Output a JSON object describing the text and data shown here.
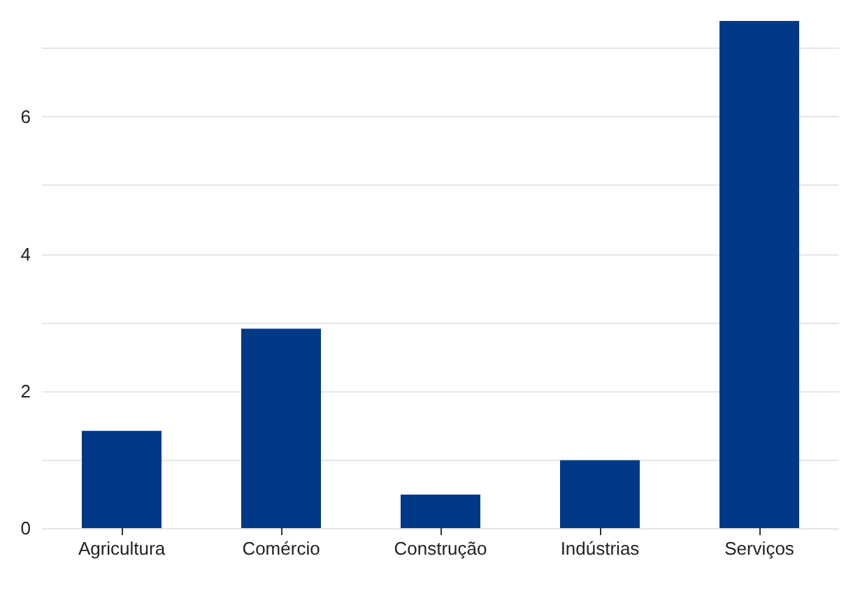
{
  "chart_data": {
    "type": "bar",
    "categories": [
      "Agricultura",
      "Comércio",
      "Construção",
      "Indústrias",
      "Serviços"
    ],
    "values": [
      1.42,
      2.91,
      0.49,
      0.99,
      7.4
    ],
    "color": "#003a87",
    "ylim": [
      0,
      7.4
    ],
    "yticks": [
      0,
      {
        "value": 1,
        "label": null
      },
      2,
      {
        "value": 3,
        "label": null
      },
      4,
      {
        "value": 5,
        "label": null
      },
      6,
      {
        "value": 7,
        "label": null
      }
    ],
    "grid": "y"
  }
}
